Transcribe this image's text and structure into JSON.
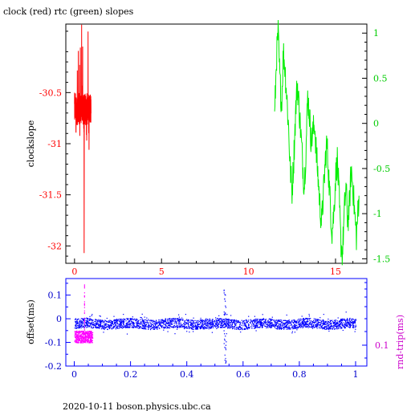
{
  "title": "clock (red) rtc (green) slopes",
  "footer": "2020-10-11 boson.physics.ubc.ca",
  "colors": {
    "clock": "#ff0000",
    "rtc": "#00ee00",
    "offset": "#0000ff",
    "roundtrip": "#ff00ff",
    "axis": "#000000"
  },
  "chart_data": [
    {
      "type": "line",
      "panel": "top",
      "xlim": [
        -0.5,
        16.8
      ],
      "x_ticks": [
        "0",
        "5",
        "10",
        "15"
      ],
      "x_tick_values": [
        0,
        5,
        10,
        15
      ],
      "ylabel_left": "clockslope",
      "ylim_left": [
        -32.17,
        -29.83
      ],
      "y_ticks_left": [
        "-30.5",
        "-31",
        "-31.5",
        "-32"
      ],
      "y_tick_values_left": [
        -30.5,
        -31,
        -31.5,
        -32
      ],
      "ylim_right": [
        -1.55,
        1.1
      ],
      "y_ticks_right": [
        "1",
        "0.5",
        "0",
        "-0.5",
        "-1",
        "-1.5"
      ],
      "y_tick_values_right": [
        1,
        0.5,
        0,
        -0.5,
        -1,
        -1.5
      ],
      "series": [
        {
          "axis": "left",
          "color": "clock",
          "x_range": [
            0,
            0.95
          ],
          "band": [
            -30.82,
            -30.5
          ],
          "extremes": [
            -29.83,
            -32.07
          ],
          "dip": {
            "x": 0.55,
            "y": -32.07
          }
        },
        {
          "axis": "right",
          "color": "rtc",
          "points": [
            [
              11.5,
              0.05
            ],
            [
              11.6,
              0.7
            ],
            [
              11.7,
              1.0
            ],
            [
              11.8,
              0.5
            ],
            [
              11.9,
              0.2
            ],
            [
              12.0,
              0.8
            ],
            [
              12.1,
              0.6
            ],
            [
              12.2,
              0.3
            ],
            [
              12.3,
              -0.05
            ],
            [
              12.4,
              -0.5
            ],
            [
              12.5,
              -0.75
            ],
            [
              12.6,
              -0.4
            ],
            [
              12.7,
              0.1
            ],
            [
              12.8,
              0.45
            ],
            [
              12.9,
              0.2
            ],
            [
              13.0,
              -0.1
            ],
            [
              13.1,
              -0.4
            ],
            [
              13.2,
              -0.7
            ],
            [
              13.3,
              -0.3
            ],
            [
              13.4,
              0.3
            ],
            [
              13.5,
              0.1
            ],
            [
              13.6,
              -0.2
            ],
            [
              13.7,
              -0.1
            ],
            [
              13.8,
              0.0
            ],
            [
              13.9,
              -0.35
            ],
            [
              14.0,
              -0.6
            ],
            [
              14.1,
              -0.9
            ],
            [
              14.2,
              -1.1
            ],
            [
              14.3,
              -0.8
            ],
            [
              14.4,
              -0.45
            ],
            [
              14.5,
              -0.2
            ],
            [
              14.6,
              -0.55
            ],
            [
              14.7,
              -0.9
            ],
            [
              14.8,
              -1.2
            ],
            [
              14.9,
              -1.0
            ],
            [
              15.0,
              -0.6
            ],
            [
              15.1,
              -0.4
            ],
            [
              15.2,
              -0.8
            ],
            [
              15.3,
              -1.3
            ],
            [
              15.4,
              -1.45
            ],
            [
              15.5,
              -1.0
            ],
            [
              15.6,
              -0.7
            ],
            [
              15.7,
              -1.1
            ],
            [
              15.8,
              -0.9
            ],
            [
              15.9,
              -0.5
            ],
            [
              16.0,
              -0.7
            ],
            [
              16.1,
              -1.0
            ],
            [
              16.2,
              -1.25
            ],
            [
              16.3,
              -0.95
            ],
            [
              16.35,
              -0.8
            ]
          ]
        }
      ]
    },
    {
      "type": "scatter",
      "panel": "bottom",
      "xlim": [
        -0.03,
        1.04
      ],
      "x_ticks": [
        "0",
        "0.2",
        "0.4",
        "0.6",
        "0.8",
        "1"
      ],
      "x_tick_values": [
        0,
        0.2,
        0.4,
        0.6,
        0.8,
        1
      ],
      "ylabel_left": "offset(ms)",
      "ylim_left": [
        -0.2,
        0.17
      ],
      "y_ticks_left": [
        "0.1",
        "0",
        "-0.1",
        "-0.2"
      ],
      "y_tick_values_left": [
        0.1,
        0,
        -0.1,
        -0.2
      ],
      "ylabel_right": "rnd-trip(ms)",
      "y_ticks_right": [
        "0.1"
      ],
      "y_tick_values_right": [
        0.1
      ],
      "series": [
        {
          "name": "offset",
          "color": "offset",
          "x_range": [
            0,
            1
          ],
          "band": [
            -0.04,
            0.0
          ],
          "spike": {
            "x": 0.535,
            "min": -0.19,
            "max": 0.14
          }
        },
        {
          "name": "rnd-trip",
          "color": "roundtrip",
          "x_range": [
            0,
            0.065
          ],
          "band": [
            -0.1,
            -0.05
          ],
          "spike": {
            "x": 0.035,
            "max": 0.15
          }
        }
      ]
    }
  ]
}
